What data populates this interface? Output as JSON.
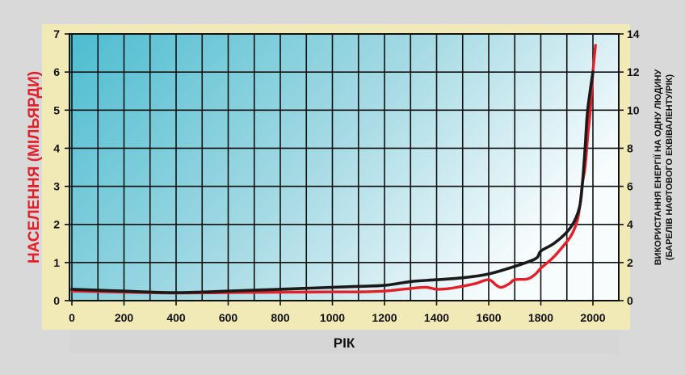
{
  "chart_data": {
    "type": "line",
    "xlabel": "РІК",
    "ylabel_left": "НАСЕЛЕННЯ (МІЛЬЯРДИ)",
    "ylabel_right_line1": "ВИКОРИСТАННЯ ЕНЕРГІЇ НА ОДНУ ЛЮДИНУ",
    "ylabel_right_line2": "(БАРЕЛІВ НАФТОВОГО ЕКВІВАЛЕНТУ/РІК)",
    "xlim": [
      0,
      2000
    ],
    "ylim_left": [
      0,
      7
    ],
    "ylim_right": [
      0,
      14
    ],
    "x_ticks": [
      "0",
      "200",
      "400",
      "600",
      "800",
      "1000",
      "1200",
      "1400",
      "1600",
      "1800",
      "2000"
    ],
    "y_ticks_left": [
      "0",
      "1",
      "2",
      "3",
      "4",
      "5",
      "6",
      "7"
    ],
    "y_ticks_right": [
      "0",
      "2",
      "4",
      "6",
      "8",
      "10",
      "12",
      "14"
    ],
    "grid": true,
    "colors": {
      "population": "#e3202a",
      "energy": "#1a1a1a",
      "left_label": "#e3202a",
      "frame": "#d9d9d9",
      "axis_band": "#f2eab6",
      "xlabel_bar": "#d6d6d6"
    },
    "series": [
      {
        "key": "population",
        "axis": "left",
        "x": [
          0,
          200,
          400,
          600,
          800,
          1000,
          1100,
          1200,
          1300,
          1360,
          1400,
          1450,
          1500,
          1550,
          1600,
          1630,
          1650,
          1680,
          1700,
          1750,
          1780,
          1800,
          1850,
          1900,
          1920,
          1940,
          1950,
          1960,
          1970,
          1980,
          1990,
          2000,
          2010
        ],
        "values": [
          0.25,
          0.22,
          0.2,
          0.21,
          0.22,
          0.23,
          0.23,
          0.25,
          0.32,
          0.35,
          0.3,
          0.32,
          0.38,
          0.45,
          0.55,
          0.4,
          0.35,
          0.45,
          0.55,
          0.57,
          0.7,
          0.85,
          1.15,
          1.55,
          1.75,
          2.1,
          2.5,
          3.1,
          3.5,
          4.3,
          5.0,
          6.0,
          6.7
        ]
      },
      {
        "key": "energy",
        "axis": "right",
        "x": [
          0,
          200,
          400,
          600,
          800,
          1000,
          1100,
          1200,
          1300,
          1400,
          1500,
          1600,
          1700,
          1780,
          1800,
          1850,
          1900,
          1930,
          1950,
          1960,
          1970,
          1980,
          2000
        ],
        "values": [
          0.6,
          0.5,
          0.42,
          0.5,
          0.6,
          0.7,
          0.75,
          0.8,
          1.0,
          1.1,
          1.2,
          1.4,
          1.8,
          2.2,
          2.6,
          3.0,
          3.6,
          4.2,
          5.0,
          6.2,
          8.0,
          10.0,
          12.0
        ]
      }
    ]
  }
}
